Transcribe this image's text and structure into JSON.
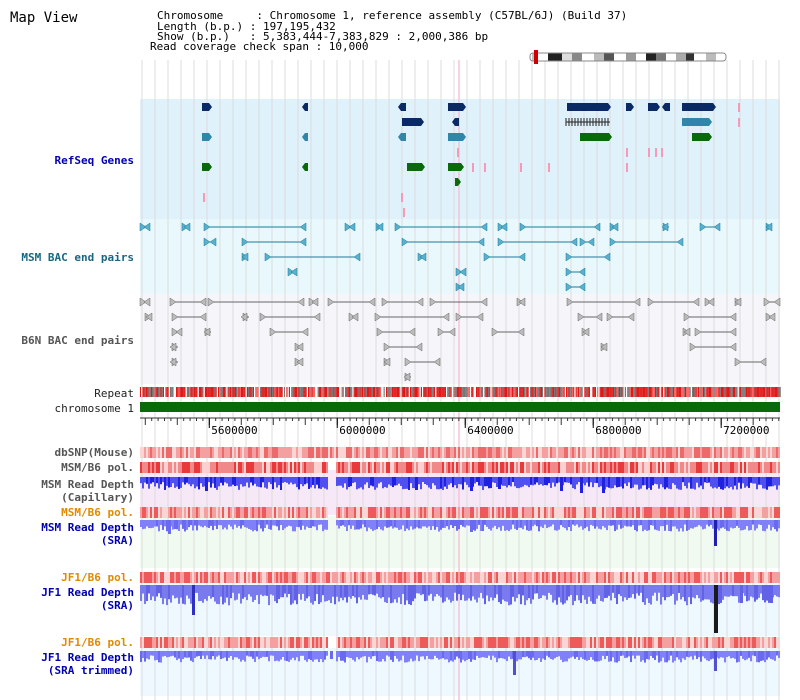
{
  "page": {
    "title": "Map View",
    "header": {
      "line1": "Chromosome     : Chromosome 1, reference assembly (C57BL/6J) (Build 37)",
      "line2": "Length (b.p.) : 197,195,432",
      "line3": "Show (b.p.)   : 5,383,444-7,383,829 : 2,000,386 bp",
      "line4": "Read coverage check span : 10,000"
    }
  },
  "tracks": {
    "refseq": "RefSeq Genes",
    "msm_bac": "MSM BAC end pairs",
    "b6n_bac": "B6N BAC end pairs",
    "repeat": "Repeat",
    "chromosome": "chromosome 1",
    "dbsnp": "dbSNP(Mouse)",
    "msm_b6_pol1": "MSM/B6 pol.",
    "msm_depth_cap_1": "MSM Read Depth",
    "msm_depth_cap_2": "(Capillary)",
    "msm_b6_pol2": "MSM/B6 pol.",
    "msm_depth_sra_1": "MSM Read Depth",
    "msm_depth_sra_2": "(SRA)",
    "jf1_b6_pol1": "JF1/B6 pol.",
    "jf1_depth_sra_1": "JF1 Read Depth",
    "jf1_depth_sra_2": "(SRA)",
    "jf1_b6_pol2": "JF1/B6 pol.",
    "jf1_depth_trim_1": "JF1 Read Depth",
    "jf1_depth_trim_2": "(SRA trimmed)"
  },
  "axis": {
    "ticks": [
      {
        "label": "5600000",
        "value": 5600000
      },
      {
        "label": "6000000",
        "value": 6000000
      },
      {
        "label": "6400000",
        "value": 6400000
      },
      {
        "label": "6800000",
        "value": 6800000
      },
      {
        "label": "7200000",
        "value": 7200000
      }
    ],
    "start": 5383444,
    "end": 7383829
  },
  "colors": {
    "refseq_bg": "#dff1fa",
    "msm_bg": "#e8f8fc",
    "b6n_bg": "#f6f6fa",
    "chromosome": "#0a6a0a",
    "navy": "#0a2a66",
    "teal": "#2f86a8",
    "green": "#0a6a0a",
    "pink": "#f79ab8",
    "depth": "#8080f8",
    "depth_cap": "#2020e0",
    "jf1_depth": "#7a7af0"
  }
}
